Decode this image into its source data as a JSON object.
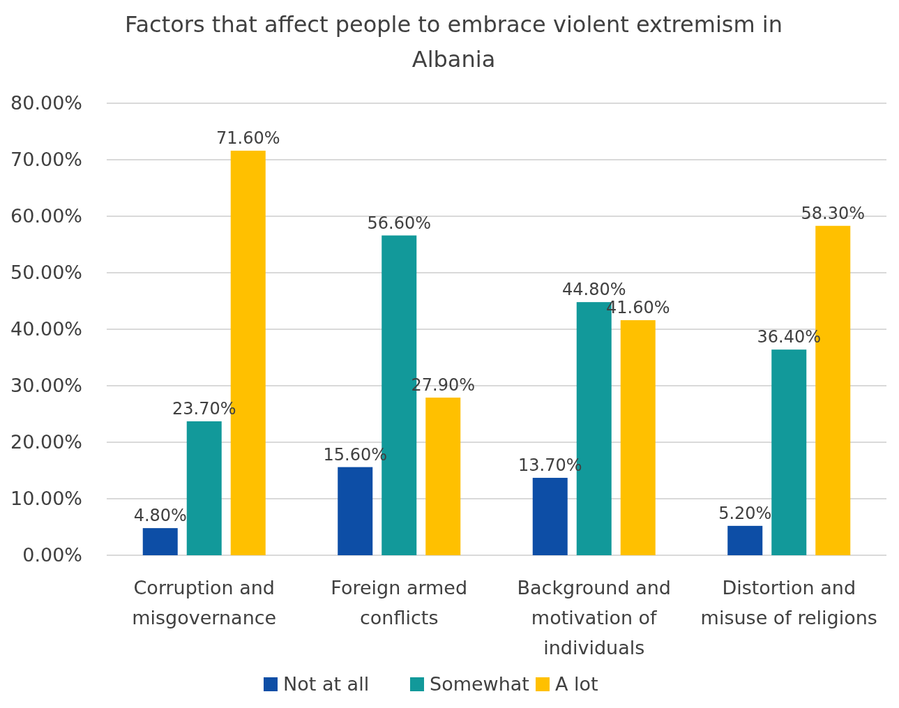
{
  "chart_data": {
    "type": "bar",
    "title": "Factors that affect people to embrace violent extremism in Albania",
    "categories": [
      "Corruption and misgovernance",
      "Foreign armed conflicts",
      "Background and motivation of individuals",
      "Distortion and misuse of religions"
    ],
    "series": [
      {
        "name": "Not at all",
        "color": "#0d4ea6",
        "values": [
          4.8,
          15.6,
          13.7,
          5.2
        ],
        "value_labels": [
          "4.80%",
          "15.60%",
          "13.70%",
          "5.20%"
        ]
      },
      {
        "name": "Somewhat",
        "color": "#12999a",
        "values": [
          23.7,
          56.6,
          44.8,
          36.4
        ],
        "value_labels": [
          "23.70%",
          "56.60%",
          "44.80%",
          "36.40%"
        ]
      },
      {
        "name": "A lot",
        "color": "#ffc000",
        "values": [
          71.6,
          27.9,
          41.6,
          58.3
        ],
        "value_labels": [
          "71.60%",
          "27.90%",
          "41.60%",
          "58.30%"
        ]
      }
    ],
    "ylim": [
      0,
      80
    ],
    "yticks": [
      {
        "value": 0,
        "label": "0.00%"
      },
      {
        "value": 10,
        "label": "10.00%"
      },
      {
        "value": 20,
        "label": "20.00%"
      },
      {
        "value": 30,
        "label": "30.00%"
      },
      {
        "value": 40,
        "label": "40.00%"
      },
      {
        "value": 50,
        "label": "50.00%"
      },
      {
        "value": 60,
        "label": "60.00%"
      },
      {
        "value": 70,
        "label": "70.00%"
      },
      {
        "value": 80,
        "label": "80.00%"
      }
    ],
    "grid": "y",
    "legend": "bottom"
  }
}
